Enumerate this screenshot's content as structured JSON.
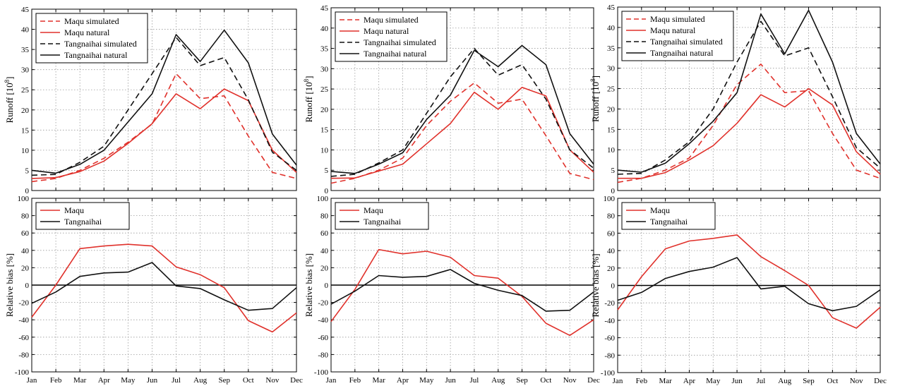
{
  "months": [
    "Jan",
    "Feb",
    "Mar",
    "Apr",
    "May",
    "Jun",
    "Jul",
    "Aug",
    "Sep",
    "Oct",
    "Nov",
    "Dec"
  ],
  "colors": {
    "maqu": "#e0312b",
    "tangnaihai": "#111111",
    "grid": "#9a9a9a"
  },
  "chart_data": [
    {
      "type": "line",
      "panel": "top-left",
      "xlabel": "",
      "ylabel": "Runoff [10^8]",
      "ylim": [
        0,
        45
      ],
      "yticks": [
        0,
        5,
        10,
        15,
        20,
        25,
        30,
        35,
        40,
        45
      ],
      "grid": true,
      "legend": "top-left",
      "series": [
        {
          "name": "Maqu simulated",
          "color": "#e0312b",
          "dash": true,
          "values": [
            2.2,
            3.0,
            5.0,
            8.0,
            12.0,
            16.5,
            29.0,
            22.8,
            23.5,
            13.5,
            4.5,
            3.0
          ]
        },
        {
          "name": "Maqu natural",
          "color": "#e0312b",
          "dash": false,
          "values": [
            3.0,
            3.2,
            4.7,
            7.3,
            11.7,
            16.6,
            24.0,
            20.3,
            25.2,
            22.3,
            10.0,
            4.5
          ]
        },
        {
          "name": "Tangnaihai simulated",
          "color": "#111111",
          "dash": true,
          "values": [
            3.8,
            4.0,
            7.0,
            11.0,
            20.0,
            29.0,
            38.0,
            31.0,
            33.0,
            22.5,
            9.5,
            5.0
          ]
        },
        {
          "name": "Tangnaihai natural",
          "color": "#111111",
          "dash": false,
          "values": [
            5.0,
            4.3,
            6.5,
            10.0,
            17.0,
            24.0,
            38.7,
            32.0,
            39.8,
            31.7,
            14.0,
            6.3
          ]
        }
      ]
    },
    {
      "type": "line",
      "panel": "top-middle",
      "xlabel": "",
      "ylabel": "Runoff [10^8]",
      "ylim": [
        0,
        45
      ],
      "yticks": [
        0,
        5,
        10,
        15,
        20,
        25,
        30,
        35,
        40,
        45
      ],
      "grid": true,
      "legend": "top-left",
      "series": [
        {
          "name": "Maqu simulated",
          "color": "#e0312b",
          "dash": true,
          "values": [
            1.8,
            3.0,
            5.0,
            8.0,
            16.0,
            22.0,
            26.5,
            21.5,
            22.5,
            13.5,
            4.2,
            2.7
          ]
        },
        {
          "name": "Maqu natural",
          "color": "#e0312b",
          "dash": false,
          "values": [
            3.0,
            3.1,
            4.8,
            6.5,
            11.5,
            16.5,
            24.2,
            20.0,
            25.4,
            23.3,
            10.0,
            4.5
          ]
        },
        {
          "name": "Tangnaihai simulated",
          "color": "#111111",
          "dash": true,
          "values": [
            3.5,
            4.0,
            6.8,
            10.0,
            19.0,
            28.0,
            35.0,
            28.4,
            31.0,
            22.5,
            10.0,
            5.5
          ]
        },
        {
          "name": "Tangnaihai natural",
          "color": "#111111",
          "dash": false,
          "values": [
            4.7,
            4.2,
            6.5,
            9.3,
            17.5,
            23.5,
            34.5,
            30.5,
            35.7,
            31.0,
            14.0,
            6.5
          ]
        }
      ]
    },
    {
      "type": "line",
      "panel": "top-right",
      "xlabel": "",
      "ylabel": "Runoff [10^8]",
      "ylim": [
        0,
        45
      ],
      "yticks": [
        0,
        5,
        10,
        15,
        20,
        25,
        30,
        35,
        40,
        45
      ],
      "grid": true,
      "legend": "top-left",
      "series": [
        {
          "name": "Maqu simulated",
          "color": "#e0312b",
          "dash": true,
          "values": [
            2.0,
            3.0,
            5.0,
            8.0,
            16.0,
            26.0,
            31.0,
            24.0,
            24.5,
            14.0,
            5.0,
            3.0
          ]
        },
        {
          "name": "Maqu natural",
          "color": "#e0312b",
          "dash": false,
          "values": [
            3.0,
            3.0,
            4.4,
            7.5,
            11.0,
            16.5,
            23.5,
            20.5,
            25.0,
            21.0,
            9.5,
            4.0
          ]
        },
        {
          "name": "Tangnaihai simulated",
          "color": "#111111",
          "dash": true,
          "values": [
            4.0,
            4.2,
            7.5,
            12.0,
            20.0,
            31.5,
            41.5,
            33.0,
            35.0,
            23.0,
            10.5,
            5.5
          ]
        },
        {
          "name": "Tangnaihai natural",
          "color": "#111111",
          "dash": false,
          "values": [
            5.0,
            4.5,
            6.7,
            11.5,
            17.0,
            24.0,
            43.3,
            33.5,
            44.2,
            31.5,
            14.0,
            6.5
          ]
        }
      ]
    },
    {
      "type": "line",
      "panel": "bottom-left",
      "xlabel": "",
      "ylabel": "Relative bias [%]",
      "ylim": [
        -100,
        100
      ],
      "yticks": [
        -100,
        -80,
        -60,
        -40,
        -20,
        0,
        20,
        40,
        60,
        80,
        100
      ],
      "grid": true,
      "legend": "top-left",
      "x_tick_labels": true,
      "series": [
        {
          "name": "Maqu",
          "color": "#e0312b",
          "values": [
            -37,
            0,
            42,
            45,
            47,
            45,
            21,
            12,
            -3,
            -41,
            -54,
            -32
          ]
        },
        {
          "name": "Tangnaihai",
          "color": "#111111",
          "values": [
            -21,
            -8,
            10,
            14,
            15,
            26,
            -1,
            -4,
            -17,
            -29,
            -27,
            -3
          ]
        }
      ]
    },
    {
      "type": "line",
      "panel": "bottom-middle",
      "xlabel": "",
      "ylabel": "Relative bias [%]",
      "ylim": [
        -100,
        100
      ],
      "yticks": [
        -100,
        -80,
        -60,
        -40,
        -20,
        0,
        20,
        40,
        60,
        80,
        100
      ],
      "grid": true,
      "legend": "top-left",
      "x_tick_labels": true,
      "series": [
        {
          "name": "Maqu",
          "color": "#e0312b",
          "values": [
            -42,
            -5,
            41,
            36,
            39,
            32,
            11,
            8,
            -13,
            -44,
            -58,
            -40
          ]
        },
        {
          "name": "Tangnaihai",
          "color": "#111111",
          "values": [
            -22,
            -7,
            11,
            9,
            10,
            18,
            2,
            -6,
            -12,
            -30,
            -29,
            -8
          ]
        }
      ]
    },
    {
      "type": "line",
      "panel": "bottom-right",
      "xlabel": "",
      "ylabel": "Relative bias [%]",
      "ylim": [
        -100,
        100
      ],
      "yticks": [
        -100,
        -80,
        -60,
        -40,
        -20,
        0,
        20,
        40,
        60,
        80,
        100
      ],
      "grid": true,
      "legend": "top-left",
      "x_tick_labels": true,
      "series": [
        {
          "name": "Maqu",
          "color": "#e0312b",
          "values": [
            -28,
            10,
            42,
            51,
            54,
            58,
            33,
            17,
            0,
            -37,
            -49,
            -25
          ]
        },
        {
          "name": "Tangnaihai",
          "color": "#111111",
          "values": [
            -17,
            -8,
            8,
            16,
            21,
            32,
            -4,
            -1,
            -21,
            -29,
            -24,
            -5
          ]
        }
      ]
    }
  ]
}
